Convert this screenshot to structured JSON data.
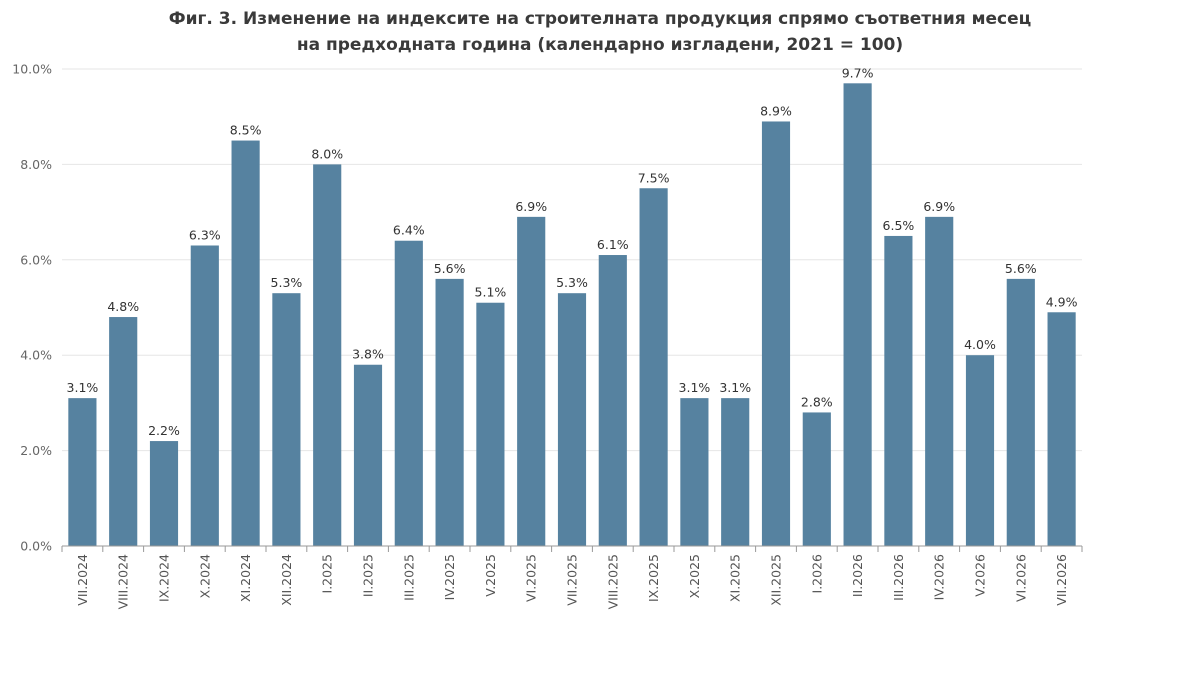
{
  "chart_data": {
    "type": "bar",
    "title_line1": "Фиг. 3. Изменение на индексите на строителната продукция спрямо съответния месец",
    "title_line2": "на предходната година (календарно изгладени, 2021 = 100)",
    "xlabel": "",
    "ylabel": "",
    "ylim": [
      0,
      10
    ],
    "y_ticks": [
      0,
      2,
      4,
      6,
      8,
      10
    ],
    "y_tick_labels": [
      "0.0%",
      "2.0%",
      "4.0%",
      "6.0%",
      "8.0%",
      "10.0%"
    ],
    "grid": true,
    "bar_color": "#5682a0",
    "categories": [
      "VII.2024",
      "VIII.2024",
      "IX.2024",
      "X.2024",
      "XI.2024",
      "XII.2024",
      "I.2025",
      "II.2025",
      "III.2025",
      "IV.2025",
      "V.2025",
      "VI.2025",
      "VII.2025",
      "VIII.2025",
      "IX.2025",
      "X.2025",
      "XI.2025",
      "XII.2025",
      "I.2026",
      "II.2026",
      "III.2026",
      "IV.2026",
      "V.2026",
      "VI.2026",
      "VII.2026"
    ],
    "values": [
      3.1,
      4.8,
      2.2,
      6.3,
      8.5,
      5.3,
      8.0,
      3.8,
      6.4,
      5.6,
      5.1,
      6.9,
      5.3,
      6.1,
      7.5,
      3.1,
      3.1,
      8.9,
      2.8,
      9.7,
      6.5,
      6.9,
      4.0,
      5.6,
      4.9
    ],
    "data_labels": [
      "3.1%",
      "4.8%",
      "2.2%",
      "6.3%",
      "8.5%",
      "5.3%",
      "8.0%",
      "3.8%",
      "6.4%",
      "5.6%",
      "5.1%",
      "6.9%",
      "5.3%",
      "6.1%",
      "7.5%",
      "3.1%",
      "3.1%",
      "8.9%",
      "2.8%",
      "9.7%",
      "6.5%",
      "6.9%",
      "4.0%",
      "5.6%",
      "4.9%"
    ]
  }
}
